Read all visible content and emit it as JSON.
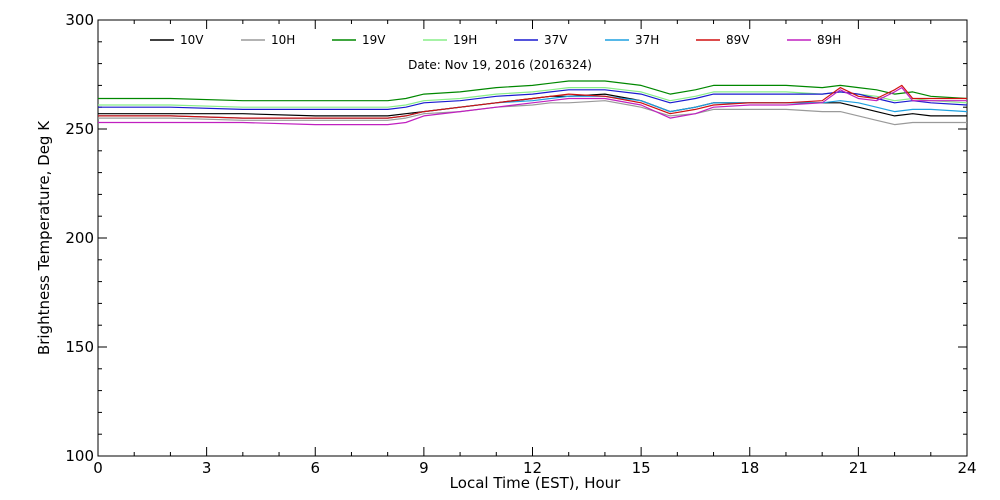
{
  "chart_data": {
    "type": "line",
    "title": "Date: Nov 19, 2016 (2016324)",
    "xlabel": "Local Time (EST), Hour",
    "ylabel": "Brightness Temperature, Deg K",
    "xlim": [
      0,
      24
    ],
    "ylim": [
      100,
      300
    ],
    "xticks": [
      0,
      3,
      6,
      9,
      12,
      15,
      18,
      21,
      24
    ],
    "yticks": [
      100,
      150,
      200,
      250,
      300
    ],
    "xtick_labels": [
      "0",
      "3",
      "6",
      "9",
      "12",
      "15",
      "18",
      "21",
      "24"
    ],
    "ytick_labels": [
      "100",
      "150",
      "200",
      "250",
      "300"
    ],
    "grid": false,
    "legend_position": "top",
    "series": [
      {
        "name": "10V",
        "color": "#000000",
        "x": [
          0,
          2,
          4,
          6,
          7,
          8,
          8.5,
          9,
          10,
          11,
          12,
          12.5,
          13,
          14,
          15,
          15.8,
          16.5,
          17,
          18,
          19,
          20,
          20.5,
          21,
          21.5,
          22,
          22.5,
          23,
          24
        ],
        "y": [
          257,
          257,
          257,
          256,
          256,
          256,
          257,
          258,
          260,
          262,
          264,
          265,
          265,
          266,
          263,
          258,
          260,
          262,
          262,
          262,
          262,
          262,
          260,
          258,
          256,
          257,
          256,
          256
        ]
      },
      {
        "name": "10H",
        "color": "#9a9a9a",
        "x": [
          0,
          2,
          4,
          6,
          7,
          8,
          8.5,
          9,
          10,
          11,
          12,
          12.5,
          13,
          14,
          15,
          15.8,
          16.5,
          17,
          18,
          19,
          20,
          20.5,
          21,
          21.5,
          22,
          22.5,
          23,
          24
        ],
        "y": [
          255,
          255,
          254,
          254,
          254,
          254,
          255,
          257,
          258,
          260,
          261,
          262,
          262,
          263,
          260,
          256,
          257,
          259,
          259,
          259,
          258,
          258,
          256,
          254,
          252,
          253,
          253,
          253
        ]
      },
      {
        "name": "19V",
        "color": "#008800",
        "x": [
          0,
          2,
          4,
          6,
          7,
          8,
          8.5,
          9,
          10,
          11,
          12,
          12.5,
          13,
          14,
          15,
          15.8,
          16.5,
          17,
          18,
          19,
          20,
          20.5,
          21,
          21.5,
          22,
          22.5,
          23,
          24
        ],
        "y": [
          264,
          264,
          263,
          263,
          263,
          263,
          264,
          266,
          267,
          269,
          270,
          271,
          272,
          272,
          270,
          266,
          268,
          270,
          270,
          270,
          269,
          270,
          269,
          268,
          266,
          267,
          265,
          264
        ]
      },
      {
        "name": "19H",
        "color": "#88ee88",
        "x": [
          0,
          2,
          4,
          6,
          7,
          8,
          8.5,
          9,
          10,
          11,
          12,
          12.5,
          13,
          14,
          15,
          15.8,
          16.5,
          17,
          18,
          19,
          20,
          20.5,
          21,
          21.5,
          22,
          22.5,
          23,
          24
        ],
        "y": [
          261,
          261,
          260,
          260,
          260,
          260,
          261,
          263,
          264,
          266,
          267,
          268,
          269,
          269,
          267,
          263,
          265,
          267,
          267,
          267,
          266,
          267,
          266,
          265,
          263,
          264,
          263,
          262
        ]
      },
      {
        "name": "37V",
        "color": "#1a1ad0",
        "x": [
          0,
          2,
          4,
          6,
          7,
          8,
          8.5,
          9,
          10,
          11,
          12,
          12.5,
          13,
          14,
          15,
          15.8,
          16.5,
          17,
          18,
          19,
          20,
          20.5,
          21,
          21.5,
          22,
          22.5,
          23,
          24
        ],
        "y": [
          260,
          260,
          259,
          259,
          259,
          259,
          260,
          262,
          263,
          265,
          266,
          267,
          268,
          268,
          266,
          262,
          264,
          266,
          266,
          266,
          266,
          267,
          266,
          264,
          262,
          263,
          262,
          261
        ]
      },
      {
        "name": "37H",
        "color": "#1ea0e0",
        "x": [
          0,
          2,
          4,
          6,
          7,
          8,
          8.5,
          9,
          10,
          11,
          12,
          12.5,
          13,
          14,
          15,
          15.8,
          16.5,
          17,
          18,
          19,
          20,
          20.5,
          21,
          21.5,
          22,
          22.5,
          23,
          24
        ],
        "y": [
          256,
          256,
          255,
          255,
          255,
          255,
          256,
          258,
          260,
          262,
          263,
          264,
          265,
          265,
          263,
          258,
          260,
          262,
          262,
          262,
          262,
          263,
          262,
          260,
          258,
          259,
          259,
          258
        ]
      },
      {
        "name": "89V",
        "color": "#d01010",
        "x": [
          0,
          2,
          4,
          6,
          7,
          8,
          8.5,
          9,
          10,
          11,
          12,
          12.5,
          13,
          14,
          15,
          15.8,
          16.5,
          17,
          18,
          19,
          20,
          20.5,
          21,
          21.5,
          22,
          22.2,
          22.5,
          23,
          24
        ],
        "y": [
          256,
          256,
          255,
          255,
          255,
          255,
          256,
          258,
          260,
          262,
          264,
          265,
          266,
          265,
          262,
          257,
          259,
          261,
          262,
          262,
          263,
          269,
          265,
          264,
          268,
          270,
          264,
          264,
          264
        ]
      },
      {
        "name": "89H",
        "color": "#c020c0",
        "x": [
          0,
          2,
          4,
          6,
          7,
          8,
          8.5,
          9,
          10,
          11,
          12,
          12.5,
          13,
          14,
          15,
          15.8,
          16.5,
          17,
          18,
          19,
          20,
          20.5,
          21,
          21.5,
          22,
          22.2,
          22.5,
          23,
          24
        ],
        "y": [
          253,
          253,
          253,
          252,
          252,
          252,
          253,
          256,
          258,
          260,
          262,
          263,
          264,
          264,
          261,
          255,
          257,
          260,
          261,
          261,
          262,
          268,
          264,
          263,
          267,
          269,
          263,
          263,
          263
        ]
      }
    ]
  }
}
